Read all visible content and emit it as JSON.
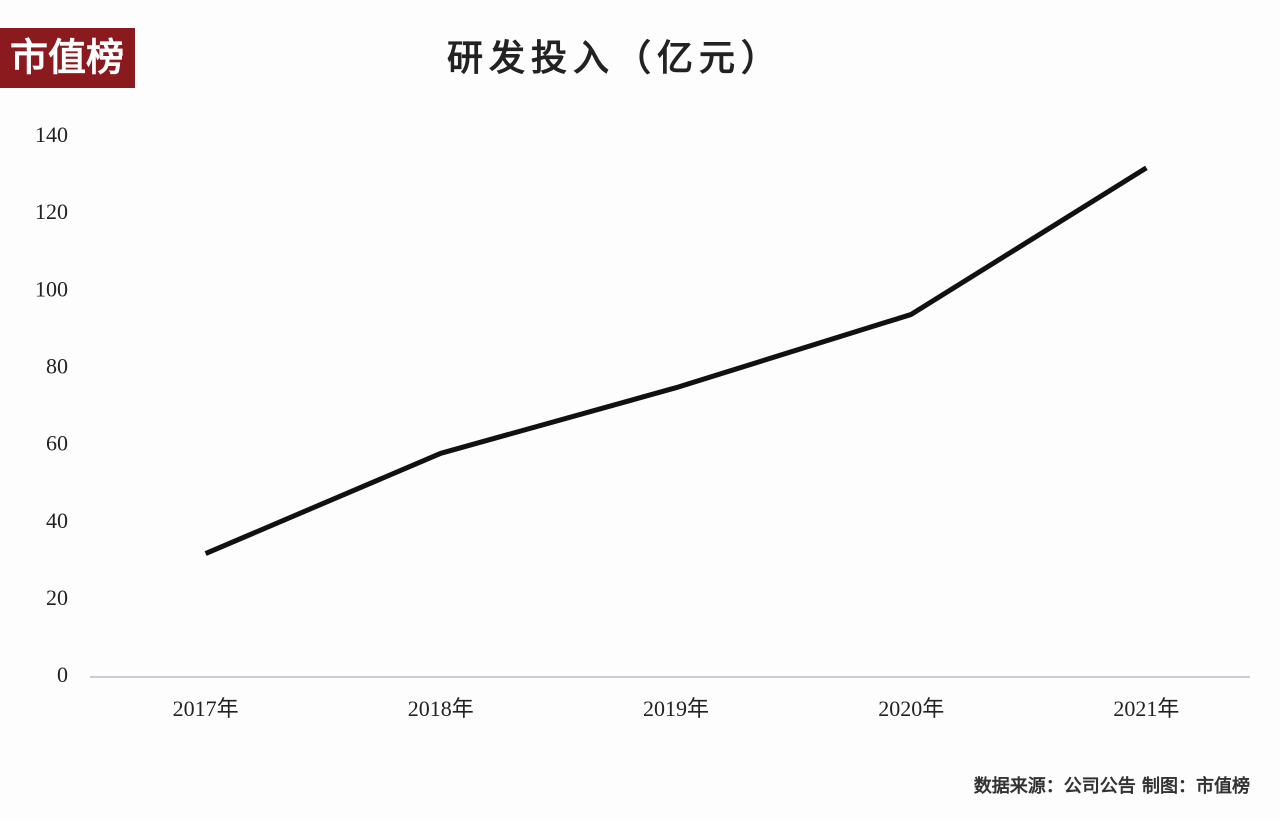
{
  "logo": "市值榜",
  "chart_data": {
    "type": "line",
    "title": "研发投入（亿元）",
    "categories": [
      "2017年",
      "2018年",
      "2019年",
      "2020年",
      "2021年"
    ],
    "series": [
      {
        "name": "研发投入",
        "color": "#111111",
        "values": [
          32,
          58,
          75,
          94,
          132
        ]
      }
    ],
    "ylim": [
      0,
      140
    ],
    "yticks": [
      0,
      20,
      40,
      60,
      80,
      100,
      120,
      140
    ],
    "grid": false,
    "source": "数据来源：公司公告 制图：市值榜"
  }
}
